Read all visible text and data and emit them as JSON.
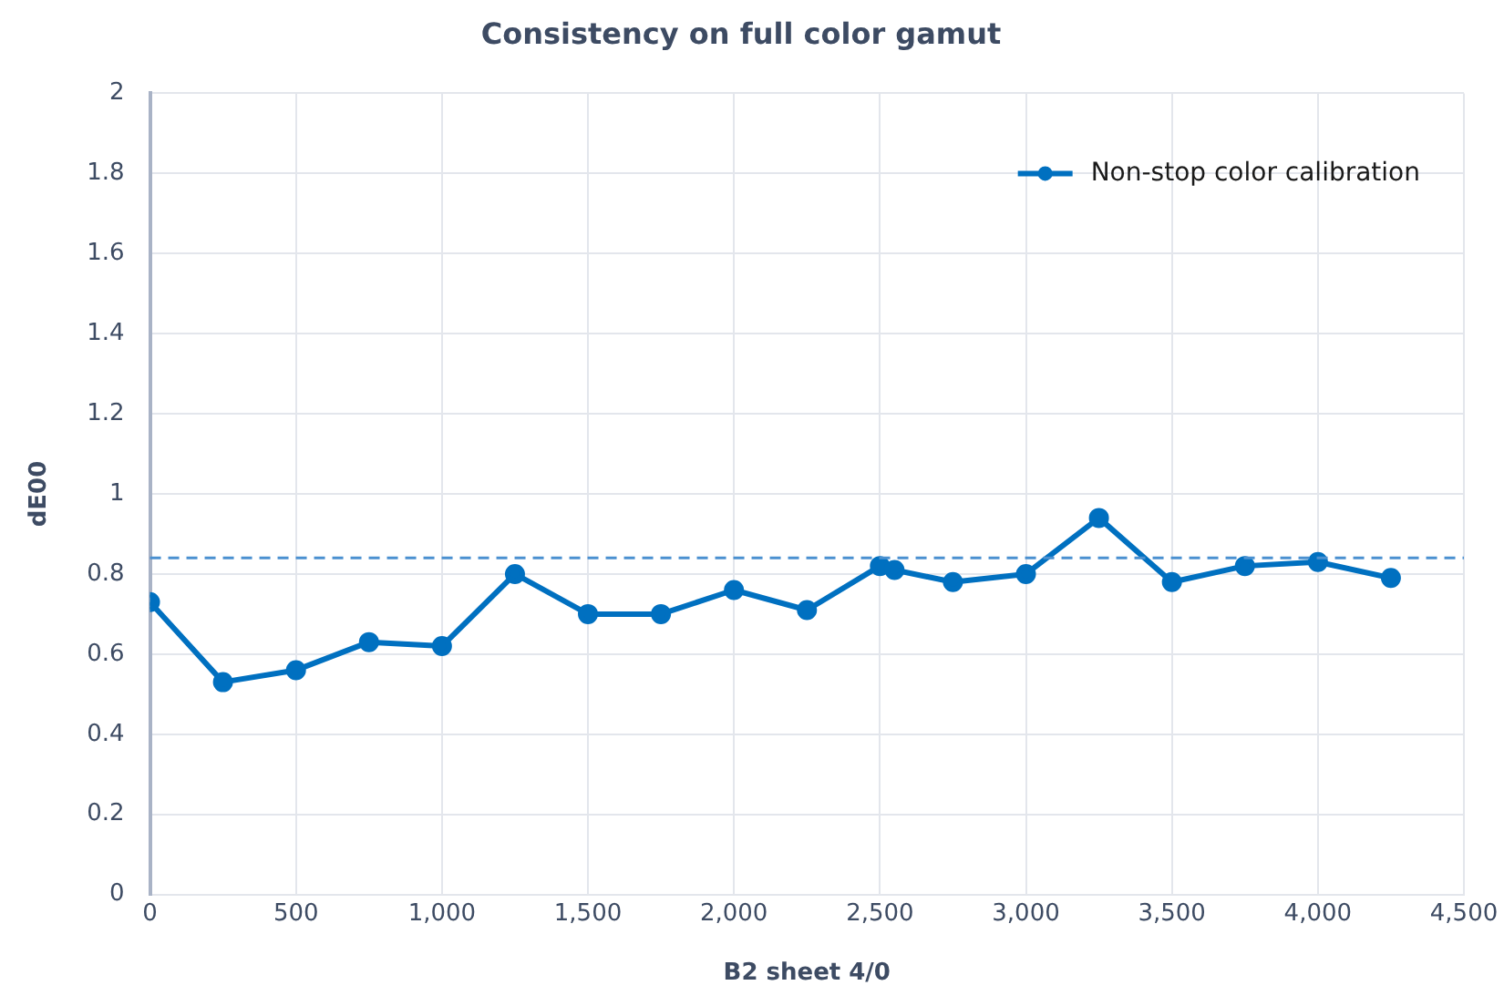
{
  "chart_data": {
    "type": "line",
    "title": "Consistency on full color gamut",
    "xlabel": "B2 sheet 4/0",
    "ylabel": "dE00",
    "x": [
      0,
      250,
      500,
      750,
      1000,
      1250,
      1500,
      1750,
      2000,
      2250,
      2500,
      2550,
      2750,
      3000,
      3250,
      3500,
      3750,
      4000,
      4250
    ],
    "series": [
      {
        "name": "Non-stop color calibration",
        "color": "#0070c0",
        "values": [
          0.73,
          0.53,
          0.56,
          0.63,
          0.62,
          0.8,
          0.7,
          0.7,
          0.76,
          0.71,
          0.82,
          0.81,
          0.78,
          0.8,
          0.94,
          0.78,
          0.82,
          0.83,
          0.79
        ]
      }
    ],
    "xlim": [
      0,
      4500
    ],
    "xticks": [
      0,
      {
        "value": 500,
        "label": "500"
      },
      {
        "value": 1000,
        "label": "1,000"
      },
      {
        "value": 1500,
        "label": "1,500"
      },
      {
        "value": 2000,
        "label": "2,000"
      },
      {
        "value": 2500,
        "label": "2,500"
      },
      {
        "value": 3000,
        "label": "3,000"
      },
      {
        "value": 3500,
        "label": "3,500"
      },
      {
        "value": 4000,
        "label": "4,000"
      },
      {
        "value": 4500,
        "label": "4,500"
      }
    ],
    "ylim": [
      0,
      2
    ],
    "yticks": [
      0,
      0.2,
      0.4,
      0.6,
      0.8,
      1,
      1.2,
      1.4,
      1.6,
      1.8,
      2
    ],
    "ref_lines": [
      {
        "axis": "y",
        "value": 0.84,
        "color": "#4a90d0",
        "line_style": "dashed"
      }
    ],
    "grid": true,
    "legend": "top right",
    "marker": "circle",
    "line_style": "solid"
  }
}
